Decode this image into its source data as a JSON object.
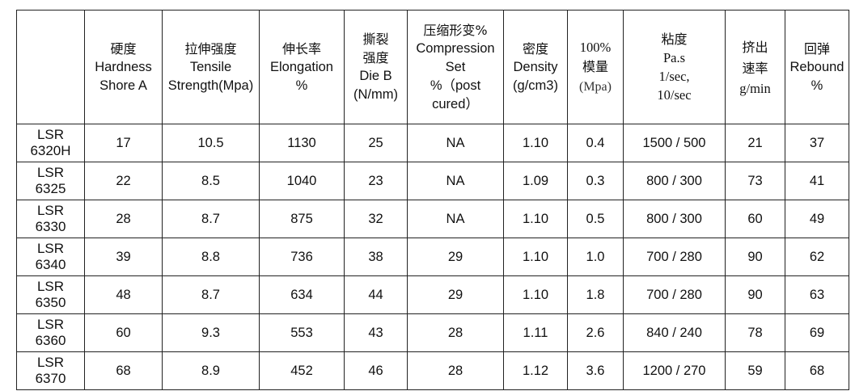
{
  "table": {
    "headers": [
      {
        "key": "model",
        "lines": []
      },
      {
        "key": "hardness",
        "lines": [
          "硬度",
          "Hardness",
          "Shore A"
        ]
      },
      {
        "key": "tensile",
        "lines": [
          "拉伸强度",
          "Tensile",
          "Strength(Mpa)"
        ]
      },
      {
        "key": "elongation",
        "lines": [
          "伸长率",
          "Elongation",
          "%"
        ]
      },
      {
        "key": "tear",
        "lines": [
          "撕裂",
          "强度",
          "Die B",
          "(N/mm)"
        ]
      },
      {
        "key": "compression",
        "lines": [
          "压缩形变%",
          "Compression",
          "Set",
          "%（post",
          "cured）"
        ]
      },
      {
        "key": "density",
        "lines": [
          "密度",
          "Density",
          "(g/cm3)"
        ]
      },
      {
        "key": "modulus",
        "lines": [
          "100%",
          "模量",
          "(Mpa)"
        ]
      },
      {
        "key": "viscosity",
        "lines": [
          "粘度",
          "Pa.s",
          "1/sec,",
          "10/sec"
        ]
      },
      {
        "key": "extrusion",
        "lines": [
          "挤出",
          "速率",
          "g/min"
        ]
      },
      {
        "key": "rebound",
        "lines": [
          "回弹",
          "Rebound",
          "%"
        ]
      }
    ],
    "rows": [
      {
        "model": [
          "LSR",
          "6320H"
        ],
        "hardness": "17",
        "tensile": "10.5",
        "elongation": "1130",
        "tear": "25",
        "compression": "NA",
        "density": "1.10",
        "modulus": "0.4",
        "viscosity": "1500 / 500",
        "extrusion": "21",
        "rebound": "37"
      },
      {
        "model": [
          "LSR",
          "6325"
        ],
        "hardness": "22",
        "tensile": "8.5",
        "elongation": "1040",
        "tear": "23",
        "compression": "NA",
        "density": "1.09",
        "modulus": "0.3",
        "viscosity": "800 / 300",
        "extrusion": "73",
        "rebound": "41"
      },
      {
        "model": [
          "LSR",
          "6330"
        ],
        "hardness": "28",
        "tensile": "8.7",
        "elongation": "875",
        "tear": "32",
        "compression": "NA",
        "density": "1.10",
        "modulus": "0.5",
        "viscosity": "800 / 300",
        "extrusion": "60",
        "rebound": "49"
      },
      {
        "model": [
          "LSR",
          "6340"
        ],
        "hardness": "39",
        "tensile": "8.8",
        "elongation": "736",
        "tear": "38",
        "compression": "29",
        "density": "1.10",
        "modulus": "1.0",
        "viscosity": "700 / 280",
        "extrusion": "90",
        "rebound": "62"
      },
      {
        "model": [
          "LSR",
          "6350"
        ],
        "hardness": "48",
        "tensile": "8.7",
        "elongation": "634",
        "tear": "44",
        "compression": "29",
        "density": "1.10",
        "modulus": "1.8",
        "viscosity": "700 / 280",
        "extrusion": "90",
        "rebound": "63"
      },
      {
        "model": [
          "LSR",
          "6360"
        ],
        "hardness": "60",
        "tensile": "9.3",
        "elongation": "553",
        "tear": "43",
        "compression": "28",
        "density": "1.11",
        "modulus": "2.6",
        "viscosity": "840 / 240",
        "extrusion": "78",
        "rebound": "69"
      },
      {
        "model": [
          "LSR",
          "6370"
        ],
        "hardness": "68",
        "tensile": "8.9",
        "elongation": "452",
        "tear": "46",
        "compression": "28",
        "density": "1.12",
        "modulus": "3.6",
        "viscosity": "1200 / 270",
        "extrusion": "59",
        "rebound": "68"
      }
    ]
  }
}
